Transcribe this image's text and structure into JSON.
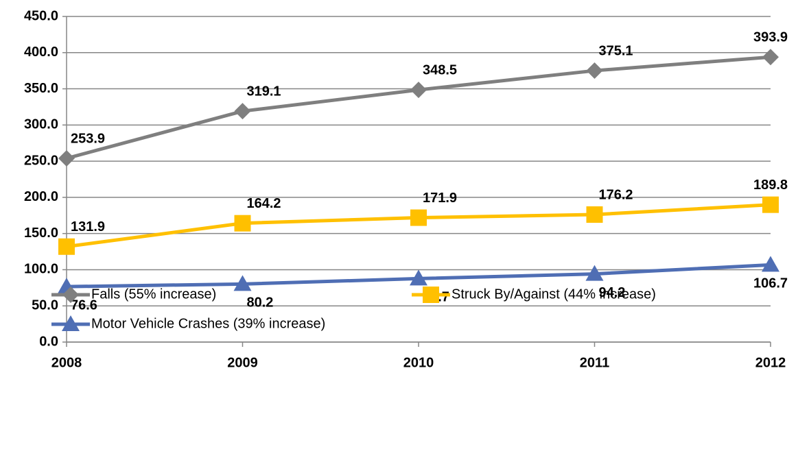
{
  "chart_data": {
    "type": "line",
    "categories": [
      "2008",
      "2009",
      "2010",
      "2011",
      "2012"
    ],
    "series": [
      {
        "name": "Falls (55% increase)",
        "color": "#7f7f7f",
        "marker": "diamond",
        "values": [
          253.9,
          319.1,
          348.5,
          375.1,
          393.9
        ]
      },
      {
        "name": "Struck By/Against (44% increase)",
        "color": "#ffc000",
        "marker": "square",
        "values": [
          131.9,
          164.2,
          171.9,
          176.2,
          189.8
        ]
      },
      {
        "name": "Motor Vehicle Crashes (39% increase)",
        "color": "#4f6eb4",
        "marker": "triangle",
        "values": [
          76.6,
          80.2,
          87.7,
          94.2,
          106.7
        ]
      }
    ],
    "ylim": [
      0,
      450
    ],
    "yticks": [
      {
        "value": 0,
        "label": "0.0"
      },
      {
        "value": 50,
        "label": "50.0"
      },
      {
        "value": 100,
        "label": "100.0"
      },
      {
        "value": 150,
        "label": "150.0"
      },
      {
        "value": 200,
        "label": "200.0"
      },
      {
        "value": 250,
        "label": "250.0"
      },
      {
        "value": 300,
        "label": "300.0"
      },
      {
        "value": 350,
        "label": "350.0"
      },
      {
        "value": 400,
        "label": "400.0"
      },
      {
        "value": 450,
        "label": "450.0"
      }
    ],
    "grid": true,
    "legend": "bottom"
  }
}
